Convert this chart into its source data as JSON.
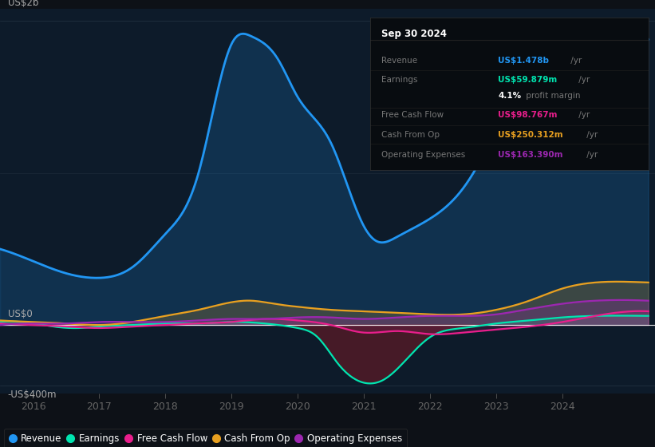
{
  "background_color": "#0d1117",
  "plot_bg_color": "#0d1b2a",
  "ylabel_top": "US$2b",
  "ylabel_bottom": "-US$400m",
  "ylabel_zero": "US$0",
  "revenue_color": "#2196f3",
  "earnings_color": "#00e5b0",
  "fcf_color": "#e91e8c",
  "cashfromop_color": "#e8a020",
  "opex_color": "#9c27b0",
  "legend_items": [
    "Revenue",
    "Earnings",
    "Free Cash Flow",
    "Cash From Op",
    "Operating Expenses"
  ],
  "info_box_bg": "#0a0a0a",
  "info_box_title": "Sep 30 2024",
  "info_rows": [
    {
      "label": "Revenue",
      "value": "US$1.478b",
      "suffix": " /yr",
      "color": "#2196f3"
    },
    {
      "label": "Earnings",
      "value": "US$59.879m",
      "suffix": " /yr",
      "color": "#00e5b0"
    },
    {
      "label": "",
      "value": "4.1%",
      "suffix": " profit margin",
      "color": "#cccccc"
    },
    {
      "label": "Free Cash Flow",
      "value": "US$98.767m",
      "suffix": " /yr",
      "color": "#e91e8c"
    },
    {
      "label": "Cash From Op",
      "value": "US$250.312m",
      "suffix": " /yr",
      "color": "#e8a020"
    },
    {
      "label": "Operating Expenses",
      "value": "US$163.390m",
      "suffix": " /yr",
      "color": "#9c27b0"
    }
  ]
}
